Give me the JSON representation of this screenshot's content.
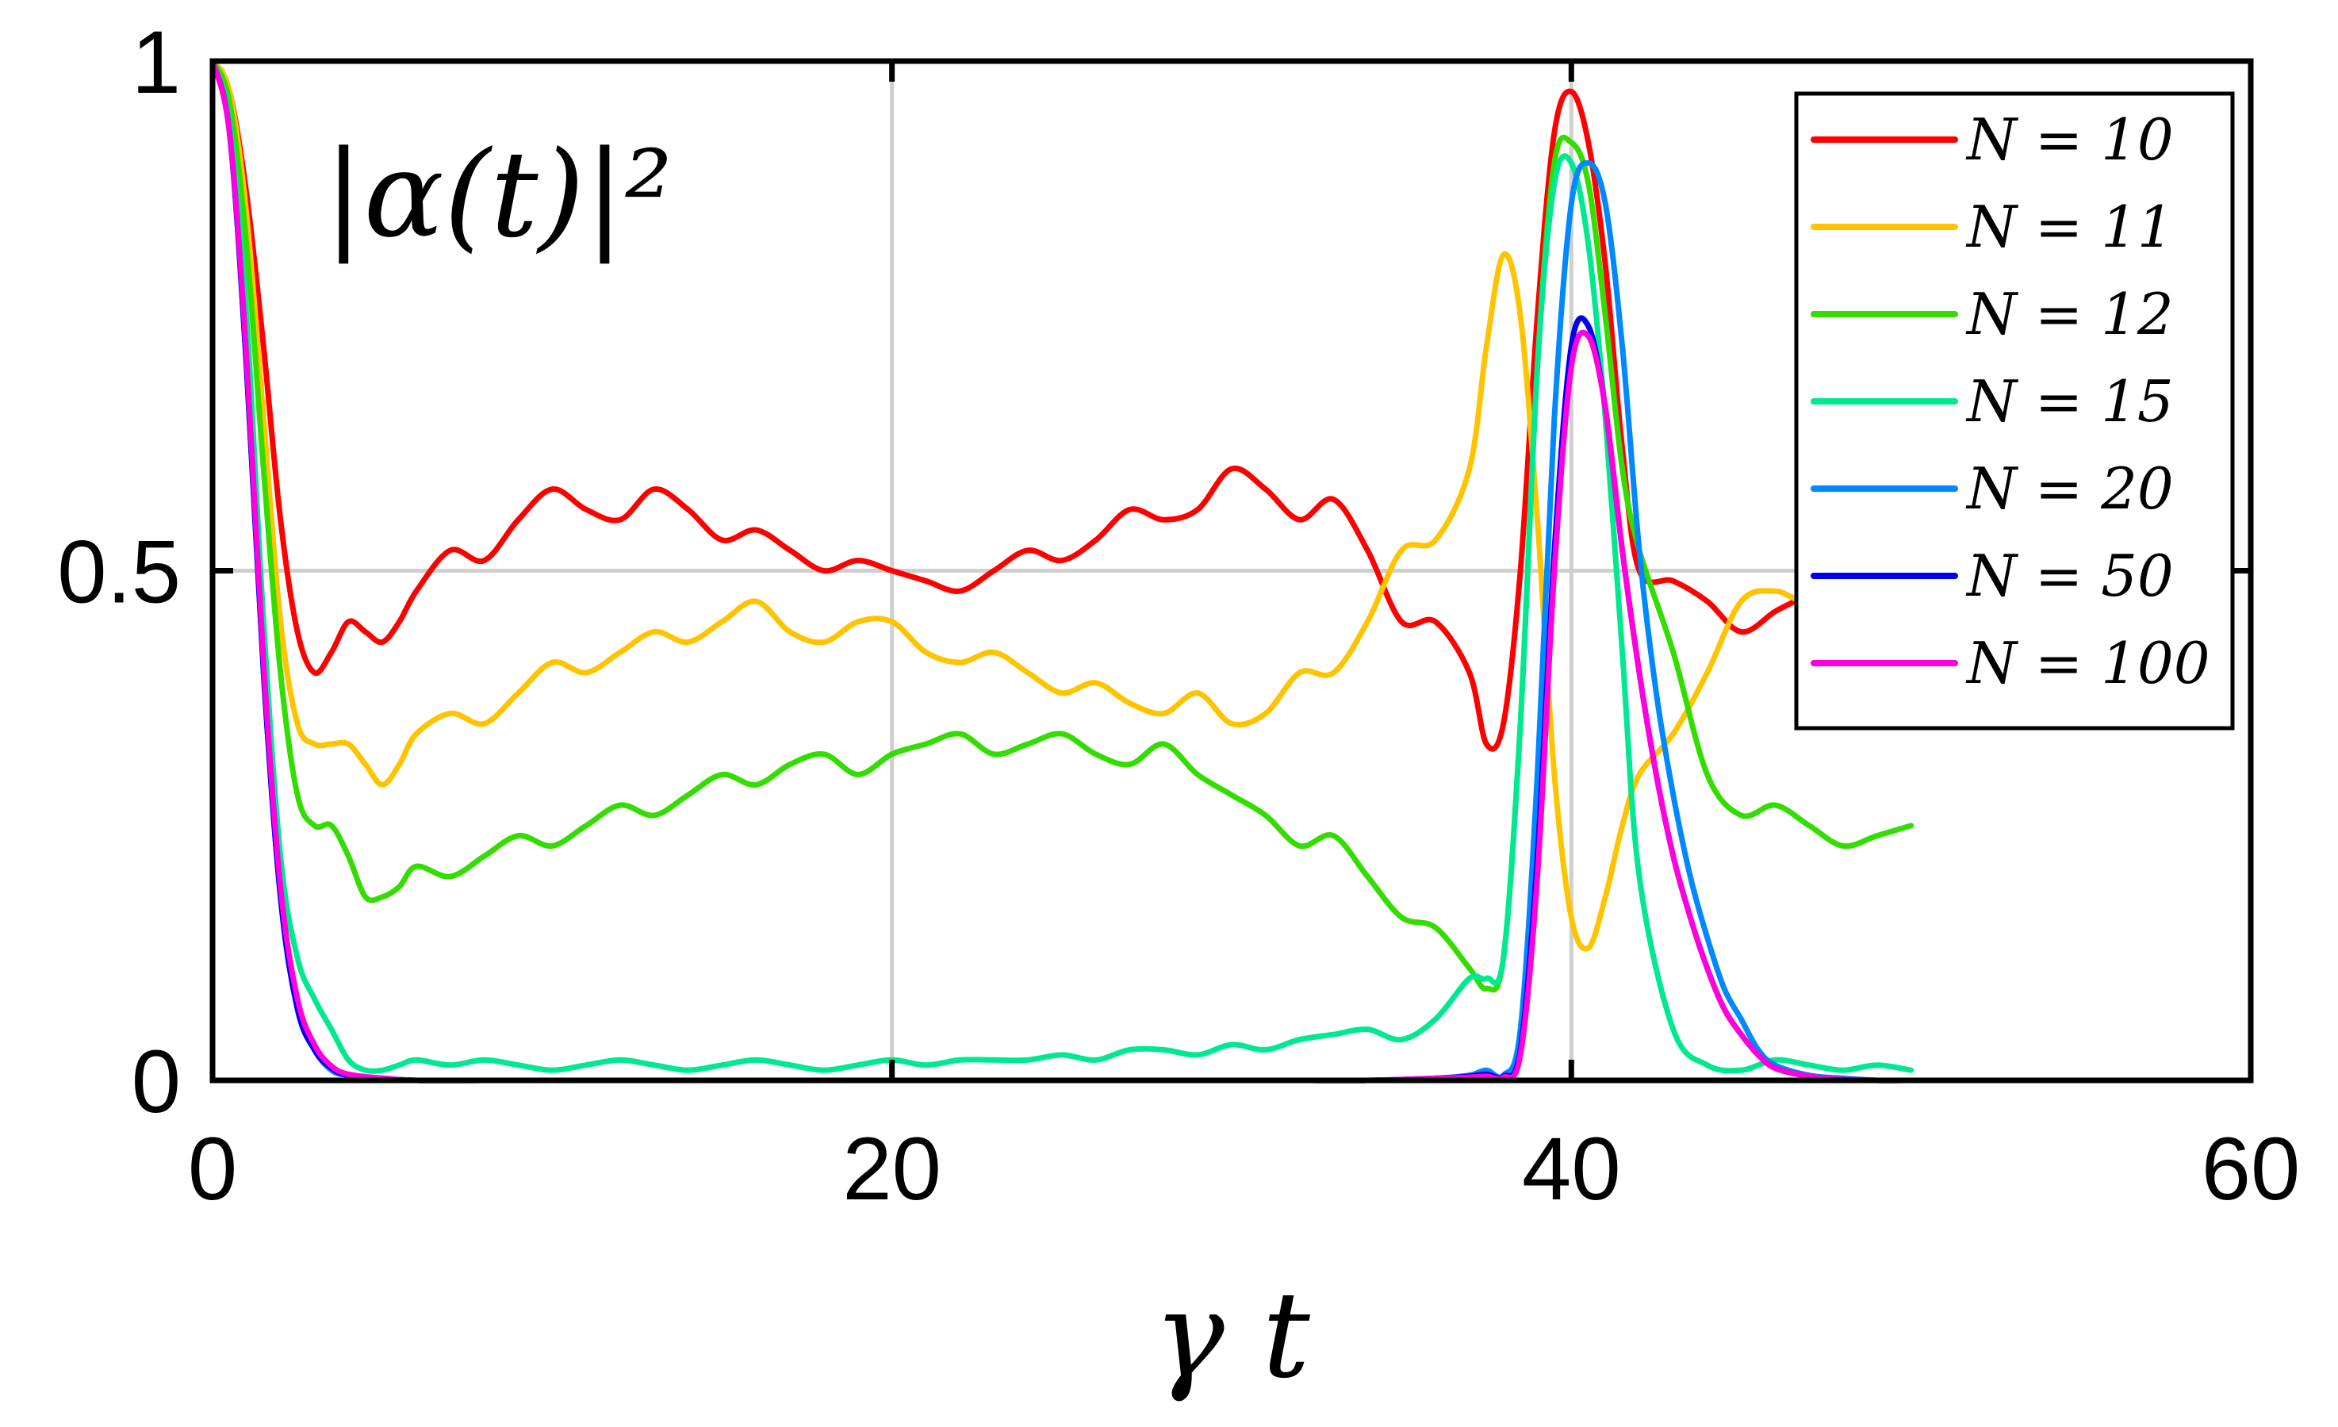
{
  "chart_data": {
    "type": "line",
    "title": "",
    "annotation": "|α(t)|²",
    "xlabel": "γ t",
    "ylabel": "",
    "xlim": [
      0,
      60
    ],
    "ylim": [
      0,
      1
    ],
    "xticks": [
      0,
      20,
      40,
      60
    ],
    "xtick_labels": [
      "0",
      "20",
      "40",
      "60"
    ],
    "yticks": [
      0,
      0.5,
      1
    ],
    "ytick_labels": [
      "0",
      "0.5",
      "1"
    ],
    "grid": true,
    "legend_position": "top-right",
    "series": [
      {
        "name": "N = 10",
        "color": "#ff0000",
        "x": [
          0,
          0.5,
          1,
          1.5,
          2,
          2.5,
          3,
          3.5,
          4,
          4.5,
          5,
          5.5,
          6,
          7,
          8,
          9,
          10,
          11,
          12,
          13,
          14,
          15,
          16,
          17,
          18,
          19,
          20,
          21,
          22,
          23,
          24,
          25,
          26,
          27,
          28,
          29,
          30,
          31,
          32,
          33,
          34,
          35,
          36,
          37,
          37.5,
          38,
          38.5,
          39,
          39.5,
          40,
          40.5,
          41,
          41.5,
          42,
          43,
          44,
          45,
          46,
          47,
          48,
          49,
          50
        ],
        "values": [
          1,
          0.97,
          0.87,
          0.72,
          0.55,
          0.44,
          0.4,
          0.42,
          0.45,
          0.44,
          0.43,
          0.45,
          0.48,
          0.52,
          0.51,
          0.55,
          0.58,
          0.56,
          0.55,
          0.58,
          0.56,
          0.53,
          0.54,
          0.52,
          0.5,
          0.51,
          0.5,
          0.49,
          0.48,
          0.5,
          0.52,
          0.51,
          0.53,
          0.56,
          0.55,
          0.56,
          0.6,
          0.58,
          0.55,
          0.57,
          0.52,
          0.45,
          0.45,
          0.4,
          0.33,
          0.35,
          0.5,
          0.75,
          0.93,
          0.97,
          0.92,
          0.8,
          0.62,
          0.5,
          0.49,
          0.47,
          0.44,
          0.46,
          0.48,
          0.52,
          0.55,
          0.58
        ]
      },
      {
        "name": "N = 11",
        "color": "#ffc400",
        "x": [
          0,
          0.5,
          1,
          1.5,
          2,
          2.5,
          3,
          3.5,
          4,
          4.5,
          5,
          5.5,
          6,
          7,
          8,
          9,
          10,
          11,
          12,
          13,
          14,
          15,
          16,
          17,
          18,
          19,
          20,
          21,
          22,
          23,
          24,
          25,
          26,
          27,
          28,
          29,
          30,
          31,
          32,
          33,
          34,
          35,
          36,
          37,
          37.5,
          38,
          38.5,
          39,
          39.5,
          40,
          40.5,
          41,
          41.5,
          42,
          43,
          44,
          45,
          46,
          47,
          48,
          49,
          50
        ],
        "values": [
          1,
          0.97,
          0.85,
          0.65,
          0.45,
          0.35,
          0.33,
          0.33,
          0.33,
          0.31,
          0.29,
          0.31,
          0.34,
          0.36,
          0.35,
          0.38,
          0.41,
          0.4,
          0.42,
          0.44,
          0.43,
          0.45,
          0.47,
          0.44,
          0.43,
          0.45,
          0.45,
          0.42,
          0.41,
          0.42,
          0.4,
          0.38,
          0.39,
          0.37,
          0.36,
          0.38,
          0.35,
          0.36,
          0.4,
          0.4,
          0.45,
          0.52,
          0.53,
          0.6,
          0.72,
          0.81,
          0.75,
          0.55,
          0.3,
          0.16,
          0.13,
          0.18,
          0.25,
          0.3,
          0.34,
          0.4,
          0.47,
          0.48,
          0.47,
          0.5,
          0.52,
          0.54
        ]
      },
      {
        "name": "N = 12",
        "color": "#33dd00",
        "x": [
          0,
          0.5,
          1,
          1.5,
          2,
          2.5,
          3,
          3.5,
          4,
          4.5,
          5,
          5.5,
          6,
          7,
          8,
          9,
          10,
          11,
          12,
          13,
          14,
          15,
          16,
          17,
          18,
          19,
          20,
          21,
          22,
          23,
          24,
          25,
          26,
          27,
          28,
          29,
          30,
          31,
          32,
          33,
          34,
          35,
          36,
          37,
          37.5,
          38,
          38.5,
          39,
          39.5,
          40,
          40.5,
          41,
          41.5,
          42,
          43,
          44,
          45,
          46,
          47,
          48,
          49,
          50
        ],
        "values": [
          1,
          0.96,
          0.82,
          0.6,
          0.4,
          0.28,
          0.25,
          0.25,
          0.22,
          0.18,
          0.18,
          0.19,
          0.21,
          0.2,
          0.22,
          0.24,
          0.23,
          0.25,
          0.27,
          0.26,
          0.28,
          0.3,
          0.29,
          0.31,
          0.32,
          0.3,
          0.32,
          0.33,
          0.34,
          0.32,
          0.33,
          0.34,
          0.32,
          0.31,
          0.33,
          0.3,
          0.28,
          0.26,
          0.23,
          0.24,
          0.2,
          0.16,
          0.15,
          0.11,
          0.09,
          0.12,
          0.35,
          0.7,
          0.9,
          0.92,
          0.88,
          0.75,
          0.6,
          0.52,
          0.42,
          0.3,
          0.26,
          0.27,
          0.25,
          0.23,
          0.24,
          0.25
        ]
      },
      {
        "name": "N = 15",
        "color": "#00e890",
        "x": [
          0,
          0.5,
          1,
          1.5,
          2,
          2.5,
          3,
          3.5,
          4,
          4.5,
          5,
          5.5,
          6,
          7,
          8,
          9,
          10,
          11,
          12,
          13,
          14,
          15,
          16,
          17,
          18,
          19,
          20,
          21,
          22,
          23,
          24,
          25,
          26,
          27,
          28,
          29,
          30,
          31,
          32,
          33,
          34,
          35,
          36,
          37,
          37.5,
          38,
          38.5,
          39,
          39.5,
          40,
          40.5,
          41,
          41.5,
          42,
          43,
          44,
          45,
          46,
          47,
          48,
          49,
          50
        ],
        "values": [
          1,
          0.94,
          0.75,
          0.45,
          0.22,
          0.12,
          0.08,
          0.05,
          0.02,
          0.01,
          0.01,
          0.015,
          0.02,
          0.015,
          0.02,
          0.015,
          0.01,
          0.015,
          0.02,
          0.015,
          0.01,
          0.015,
          0.02,
          0.015,
          0.01,
          0.015,
          0.02,
          0.015,
          0.02,
          0.02,
          0.02,
          0.025,
          0.02,
          0.03,
          0.03,
          0.025,
          0.035,
          0.03,
          0.04,
          0.045,
          0.05,
          0.04,
          0.06,
          0.1,
          0.1,
          0.12,
          0.35,
          0.7,
          0.88,
          0.9,
          0.82,
          0.65,
          0.42,
          0.2,
          0.05,
          0.015,
          0.01,
          0.02,
          0.015,
          0.01,
          0.015,
          0.01
        ]
      },
      {
        "name": "N = 20",
        "color": "#0088ff",
        "x": [
          0,
          0.5,
          1,
          1.5,
          2,
          2.5,
          3,
          3.5,
          4,
          5,
          6,
          8,
          10,
          12,
          14,
          16,
          18,
          20,
          22,
          24,
          26,
          28,
          30,
          32,
          34,
          36,
          37,
          37.5,
          38,
          38.5,
          39,
          39.5,
          40,
          40.5,
          41,
          41.5,
          42,
          42.5,
          43,
          43.5,
          44,
          44.5,
          45,
          45.5,
          46,
          47,
          48,
          49,
          50
        ],
        "values": [
          1,
          0.93,
          0.7,
          0.4,
          0.18,
          0.07,
          0.03,
          0.01,
          0.005,
          0.002,
          0,
          0,
          0,
          0,
          0,
          0,
          0,
          0,
          0,
          0,
          0,
          0,
          0,
          0,
          0,
          0.002,
          0.005,
          0.01,
          0.005,
          0.05,
          0.3,
          0.65,
          0.86,
          0.9,
          0.86,
          0.72,
          0.52,
          0.38,
          0.28,
          0.2,
          0.14,
          0.09,
          0.06,
          0.03,
          0.015,
          0.005,
          0.002,
          0,
          0
        ]
      },
      {
        "name": "N = 50",
        "color": "#0000ee",
        "x": [
          0,
          0.5,
          1,
          1.5,
          2,
          2.5,
          3,
          3.5,
          4,
          5,
          6,
          8,
          10,
          12,
          14,
          16,
          18,
          20,
          22,
          24,
          26,
          28,
          30,
          32,
          34,
          36,
          37,
          37.5,
          38,
          38.5,
          39,
          39.5,
          40,
          40.5,
          41,
          41.5,
          42,
          42.5,
          43,
          43.5,
          44,
          44.5,
          45,
          45.5,
          46,
          47,
          48,
          49,
          50
        ],
        "values": [
          1,
          0.93,
          0.7,
          0.4,
          0.18,
          0.07,
          0.03,
          0.012,
          0.005,
          0.002,
          0,
          0,
          0,
          0,
          0,
          0,
          0,
          0,
          0,
          0,
          0,
          0,
          0,
          0,
          0,
          0.002,
          0.004,
          0.006,
          0.004,
          0.03,
          0.22,
          0.52,
          0.72,
          0.74,
          0.66,
          0.52,
          0.4,
          0.3,
          0.22,
          0.16,
          0.11,
          0.07,
          0.045,
          0.025,
          0.012,
          0.004,
          0.001,
          0,
          0
        ]
      },
      {
        "name": "N = 100",
        "color": "#ff00dd",
        "x": [
          0,
          0.5,
          1,
          1.5,
          2,
          2.5,
          3,
          3.5,
          4,
          5,
          6,
          8,
          10,
          12,
          14,
          16,
          18,
          20,
          22,
          24,
          26,
          28,
          30,
          32,
          34,
          36,
          37,
          37.5,
          38,
          38.5,
          39,
          39.5,
          40,
          40.5,
          41,
          41.5,
          42,
          42.5,
          43,
          43.5,
          44,
          44.5,
          45,
          45.5,
          46,
          47,
          48,
          49,
          50
        ],
        "values": [
          1,
          0.93,
          0.71,
          0.41,
          0.19,
          0.08,
          0.035,
          0.014,
          0.006,
          0.002,
          0,
          0,
          0,
          0,
          0,
          0,
          0,
          0,
          0,
          0,
          0,
          0,
          0,
          0,
          0,
          0.002,
          0.003,
          0.004,
          0.003,
          0.025,
          0.2,
          0.5,
          0.7,
          0.73,
          0.66,
          0.52,
          0.4,
          0.3,
          0.22,
          0.16,
          0.11,
          0.07,
          0.045,
          0.025,
          0.012,
          0.004,
          0.001,
          0,
          0
        ]
      }
    ]
  }
}
